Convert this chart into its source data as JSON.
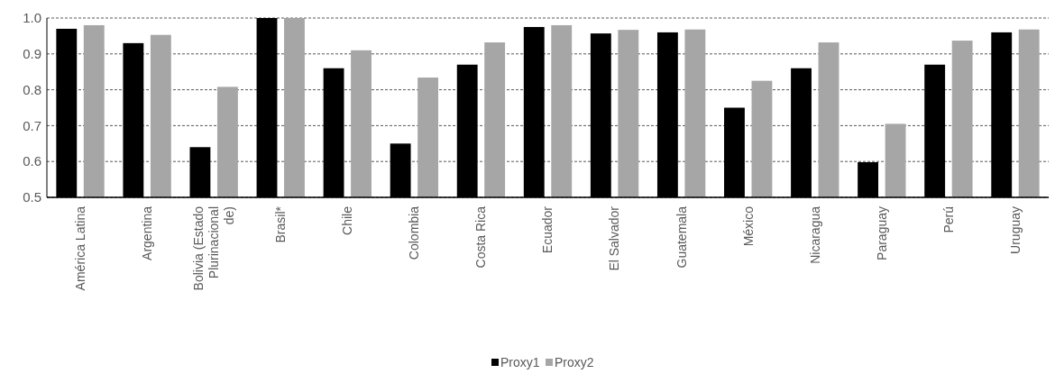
{
  "chart_data": {
    "type": "bar",
    "categories": [
      "América Latina",
      "Argentina",
      "Bolivia (Estado Plurinacional de)",
      "Brasil*",
      "Chile",
      "Colombia",
      "Costa Rica",
      "Ecuador",
      "El Salvador",
      "Guatemala",
      "México",
      "Nicaragua",
      "Paraguay",
      "Perú",
      "Uruguay"
    ],
    "series": [
      {
        "name": "Proxy1",
        "color": "#000000",
        "values": [
          0.97,
          0.93,
          0.64,
          1.0,
          0.86,
          0.65,
          0.87,
          0.975,
          0.957,
          0.96,
          0.75,
          0.86,
          0.598,
          0.87,
          0.96
        ]
      },
      {
        "name": "Proxy2",
        "color": "#a6a6a6",
        "values": [
          0.98,
          0.953,
          0.808,
          1.0,
          0.91,
          0.834,
          0.932,
          0.98,
          0.967,
          0.968,
          0.825,
          0.932,
          0.705,
          0.937,
          0.968
        ]
      }
    ],
    "ylim": [
      0.5,
      1.0
    ],
    "yticks": [
      {
        "value": 0.5,
        "label": "0.5"
      },
      {
        "value": 0.6,
        "label": "0.6"
      },
      {
        "value": 0.7,
        "label": "0.7"
      },
      {
        "value": 0.8,
        "label": "0.8"
      },
      {
        "value": 0.9,
        "label": "0.9"
      },
      {
        "value": 1.0,
        "label": "1.0"
      }
    ],
    "grid": "y",
    "legend": "bottom"
  }
}
